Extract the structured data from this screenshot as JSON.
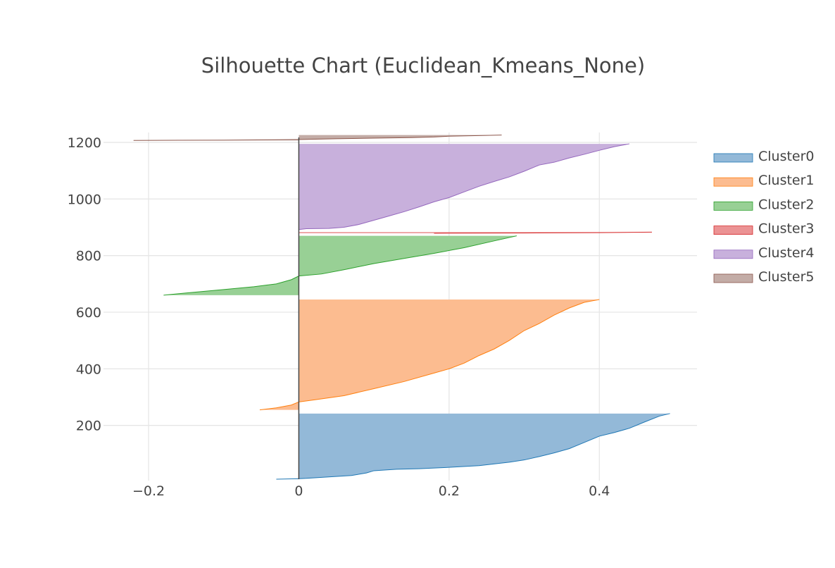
{
  "chart_data": {
    "type": "area",
    "title": "Silhouette Chart (Euclidean_Kmeans_None)",
    "xlabel": "",
    "ylabel": "",
    "xlim": [
      -0.26,
      0.53
    ],
    "ylim": [
      5,
      1235
    ],
    "x_ticks": [
      -0.2,
      0,
      0.2,
      0.4
    ],
    "x_tick_labels": [
      "−0.2",
      "0",
      "0.2",
      "0.4"
    ],
    "y_ticks": [
      200,
      400,
      600,
      800,
      1000,
      1200
    ],
    "y_tick_labels": [
      "200",
      "400",
      "600",
      "800",
      "1000",
      "1200"
    ],
    "grid": true,
    "legend_position": "right",
    "series": [
      {
        "name": "Cluster0",
        "fill": "#93b9d8",
        "line": "#1f77b4",
        "points": [
          [
            -0.03,
            10
          ],
          [
            0,
            12
          ],
          [
            0.01,
            13
          ],
          [
            0.04,
            18
          ],
          [
            0.07,
            23
          ],
          [
            0.09,
            32
          ],
          [
            0.1,
            40
          ],
          [
            0.13,
            45
          ],
          [
            0.16,
            47
          ],
          [
            0.2,
            52
          ],
          [
            0.24,
            58
          ],
          [
            0.28,
            70
          ],
          [
            0.3,
            78
          ],
          [
            0.32,
            90
          ],
          [
            0.34,
            103
          ],
          [
            0.36,
            118
          ],
          [
            0.38,
            140
          ],
          [
            0.4,
            162
          ],
          [
            0.42,
            175
          ],
          [
            0.44,
            190
          ],
          [
            0.46,
            212
          ],
          [
            0.48,
            233
          ],
          [
            0.494,
            242
          ]
        ]
      },
      {
        "name": "Cluster1",
        "fill": "#fcbc90",
        "line": "#ff7f0e",
        "points": [
          [
            -0.052,
            255
          ],
          [
            -0.03,
            262
          ],
          [
            -0.01,
            272
          ],
          [
            0,
            283
          ],
          [
            0.02,
            290
          ],
          [
            0.06,
            305
          ],
          [
            0.1,
            330
          ],
          [
            0.14,
            355
          ],
          [
            0.18,
            385
          ],
          [
            0.2,
            400
          ],
          [
            0.22,
            420
          ],
          [
            0.24,
            447
          ],
          [
            0.26,
            470
          ],
          [
            0.28,
            500
          ],
          [
            0.3,
            535
          ],
          [
            0.32,
            560
          ],
          [
            0.34,
            590
          ],
          [
            0.36,
            615
          ],
          [
            0.38,
            635
          ],
          [
            0.4,
            645
          ]
        ]
      },
      {
        "name": "Cluster2",
        "fill": "#98d095",
        "line": "#2ca02c",
        "points": [
          [
            -0.18,
            660
          ],
          [
            -0.15,
            668
          ],
          [
            -0.1,
            680
          ],
          [
            -0.06,
            690
          ],
          [
            -0.03,
            700
          ],
          [
            -0.01,
            715
          ],
          [
            0,
            728
          ],
          [
            0.03,
            735
          ],
          [
            0.06,
            750
          ],
          [
            0.1,
            772
          ],
          [
            0.14,
            790
          ],
          [
            0.18,
            808
          ],
          [
            0.22,
            828
          ],
          [
            0.26,
            852
          ],
          [
            0.29,
            870
          ]
        ]
      },
      {
        "name": "Cluster3",
        "fill": "#eb9394",
        "line": "#d62728",
        "points": [
          [
            0.18,
            879
          ],
          [
            0.3,
            880
          ],
          [
            0.4,
            881
          ],
          [
            0.47,
            883
          ]
        ]
      },
      {
        "name": "Cluster4",
        "fill": "#c8b0dc",
        "line": "#9467bd",
        "points": [
          [
            0,
            892
          ],
          [
            0.01,
            895
          ],
          [
            0.04,
            896
          ],
          [
            0.06,
            900
          ],
          [
            0.08,
            910
          ],
          [
            0.1,
            925
          ],
          [
            0.12,
            940
          ],
          [
            0.14,
            955
          ],
          [
            0.16,
            972
          ],
          [
            0.18,
            990
          ],
          [
            0.2,
            1005
          ],
          [
            0.22,
            1025
          ],
          [
            0.24,
            1045
          ],
          [
            0.26,
            1062
          ],
          [
            0.28,
            1078
          ],
          [
            0.3,
            1098
          ],
          [
            0.32,
            1120
          ],
          [
            0.34,
            1130
          ],
          [
            0.36,
            1145
          ],
          [
            0.38,
            1158
          ],
          [
            0.4,
            1172
          ],
          [
            0.42,
            1185
          ],
          [
            0.44,
            1195
          ]
        ]
      },
      {
        "name": "Cluster5",
        "fill": "#c3aca6",
        "line": "#8c564b",
        "points": [
          [
            -0.22,
            1207
          ],
          [
            -0.1,
            1208
          ],
          [
            0,
            1210
          ],
          [
            0.05,
            1213
          ],
          [
            0.1,
            1215
          ],
          [
            0.15,
            1217
          ],
          [
            0.18,
            1219
          ],
          [
            0.2,
            1222
          ],
          [
            0.24,
            1224
          ],
          [
            0.27,
            1226
          ]
        ]
      }
    ]
  }
}
